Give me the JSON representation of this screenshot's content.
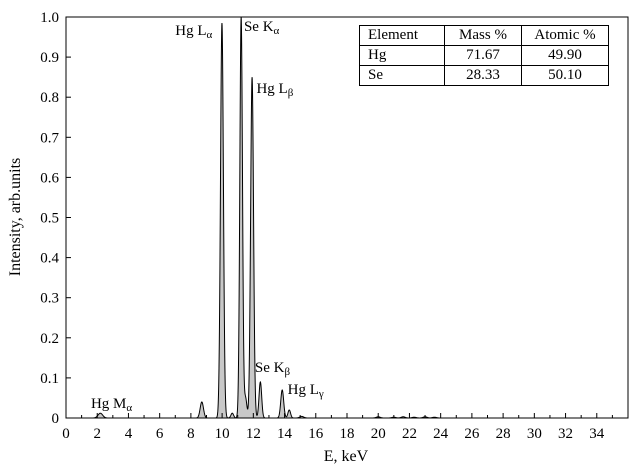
{
  "chart_data": {
    "type": "line",
    "title": "",
    "xlabel": "E, keV",
    "ylabel": "Intensity, arb.units",
    "xlim": [
      0,
      36
    ],
    "ylim": [
      0,
      1.0
    ],
    "x_ticks": [
      "0",
      "2",
      "4",
      "6",
      "8",
      "10",
      "12",
      "14",
      "16",
      "18",
      "20",
      "22",
      "24",
      "26",
      "28",
      "30",
      "32",
      "34"
    ],
    "y_ticks": [
      "0",
      "0.1",
      "0.2",
      "0.3",
      "0.4",
      "0.5",
      "0.6",
      "0.7",
      "0.8",
      "0.9",
      "1.0"
    ],
    "grid": false,
    "fill": "#c8c8c8",
    "line_color": "#000000",
    "peaks": [
      {
        "x": 2.2,
        "y": 0.012,
        "w": 0.35
      },
      {
        "x": 8.7,
        "y": 0.04,
        "w": 0.25
      },
      {
        "x": 9.99,
        "y": 0.985,
        "w": 0.22
      },
      {
        "x": 10.65,
        "y": 0.012,
        "w": 0.2
      },
      {
        "x": 11.22,
        "y": 1.0,
        "w": 0.2
      },
      {
        "x": 11.5,
        "y": 0.05,
        "w": 0.2
      },
      {
        "x": 11.92,
        "y": 0.85,
        "w": 0.22
      },
      {
        "x": 12.45,
        "y": 0.09,
        "w": 0.2
      },
      {
        "x": 13.85,
        "y": 0.07,
        "w": 0.22
      },
      {
        "x": 14.3,
        "y": 0.02,
        "w": 0.2
      },
      {
        "x": 15.1,
        "y": 0.004,
        "w": 0.3
      },
      {
        "x": 20.0,
        "y": 0.003,
        "w": 0.3
      },
      {
        "x": 21.0,
        "y": 0.002,
        "w": 0.3
      },
      {
        "x": 21.6,
        "y": 0.003,
        "w": 0.3
      },
      {
        "x": 22.3,
        "y": 0.002,
        "w": 0.3
      },
      {
        "x": 23.0,
        "y": 0.003,
        "w": 0.3
      },
      {
        "x": 23.6,
        "y": 0.002,
        "w": 0.3
      }
    ],
    "annotations": [
      {
        "main": "Hg L",
        "sub": "α",
        "x": 7.0,
        "y": 0.955
      },
      {
        "main": "Se K",
        "sub": "α",
        "x": 11.4,
        "y": 0.965
      },
      {
        "main": "Hg L",
        "sub": "β",
        "x": 12.2,
        "y": 0.81
      },
      {
        "main": "Se K",
        "sub": "β",
        "x": 12.1,
        "y": 0.115
      },
      {
        "main": "Hg L",
        "sub": "γ",
        "x": 14.2,
        "y": 0.06
      },
      {
        "main": "Hg M",
        "sub": "α",
        "x": 1.6,
        "y": 0.025
      }
    ]
  },
  "table": {
    "headers": [
      "Element",
      "Mass %",
      "Atomic %"
    ],
    "rows": [
      [
        "Hg",
        "71.67",
        "49.90"
      ],
      [
        "Se",
        "28.33",
        "50.10"
      ]
    ]
  }
}
